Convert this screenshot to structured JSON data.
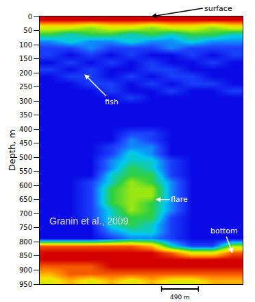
{
  "chart_data": {
    "type": "heatmap",
    "ylabel": "Depth, m",
    "x": [
      135,
      405,
      675,
      945,
      1215,
      1485,
      1755,
      2025,
      2295,
      2565
    ],
    "y": [
      12.5,
      37.5,
      62.5,
      87.5,
      112.5,
      137.5,
      162.5,
      187.5,
      212.5,
      237.5,
      262.5,
      287.5,
      312.5,
      337.5,
      362.5,
      387.5,
      412.5,
      437.5,
      462.5,
      487.5,
      512.5,
      537.5,
      562.5,
      587.5,
      612.5,
      637.5,
      662.5,
      687.5,
      712.5,
      737.5,
      762.5,
      787.5,
      812.5,
      837.5,
      862.5,
      887.5,
      912.5,
      937.5
    ],
    "cells": [
      [
        9,
        9,
        9,
        9,
        9,
        9,
        9,
        9,
        9,
        9
      ],
      [
        6,
        6,
        5,
        6,
        6,
        5,
        6,
        6,
        5,
        6
      ],
      [
        4,
        3,
        4,
        4,
        3,
        4,
        3,
        4,
        4,
        3
      ],
      [
        2,
        3,
        2,
        2,
        3,
        2,
        2,
        3,
        2,
        2
      ],
      [
        1,
        1,
        2,
        1,
        1,
        1,
        2,
        1,
        1,
        1
      ],
      [
        1,
        0,
        1,
        0,
        1,
        0,
        0,
        1,
        0,
        1
      ],
      [
        0,
        1,
        0,
        1,
        0,
        1,
        0,
        0,
        1,
        0
      ],
      [
        1,
        0,
        1,
        0,
        0,
        1,
        1,
        0,
        0,
        0
      ],
      [
        0,
        1,
        1,
        0,
        1,
        0,
        1,
        1,
        0,
        0
      ],
      [
        0,
        0,
        1,
        1,
        0,
        1,
        0,
        1,
        1,
        0
      ],
      [
        0,
        0,
        0,
        1,
        0,
        0,
        1,
        0,
        0,
        1
      ],
      [
        0,
        0,
        0,
        0,
        1,
        0,
        0,
        0,
        0,
        0
      ],
      [
        0,
        0,
        0,
        0,
        0,
        0,
        0,
        0,
        0,
        0
      ],
      [
        0,
        0,
        0,
        0,
        0,
        0,
        0,
        0,
        0,
        0
      ],
      [
        0,
        0,
        0,
        0,
        0,
        0,
        0,
        0,
        0,
        0
      ],
      [
        0,
        0,
        0,
        0,
        0,
        0,
        0,
        0,
        0,
        0
      ],
      [
        0,
        0,
        0,
        0,
        1,
        1,
        0,
        0,
        0,
        0
      ],
      [
        0,
        0,
        0,
        0,
        2,
        1,
        0,
        0,
        0,
        0
      ],
      [
        0,
        0,
        0,
        1,
        2,
        2,
        0,
        0,
        0,
        0
      ],
      [
        0,
        0,
        0,
        1,
        3,
        2,
        0,
        0,
        0,
        0
      ],
      [
        0,
        0,
        0,
        2,
        3,
        3,
        1,
        0,
        0,
        0
      ],
      [
        0,
        0,
        0,
        2,
        4,
        3,
        1,
        0,
        0,
        0
      ],
      [
        0,
        0,
        0,
        3,
        4,
        4,
        1,
        0,
        0,
        0
      ],
      [
        0,
        0,
        1,
        3,
        5,
        4,
        2,
        0,
        0,
        0
      ],
      [
        0,
        0,
        1,
        4,
        5,
        5,
        2,
        0,
        0,
        0
      ],
      [
        0,
        0,
        1,
        4,
        5,
        5,
        2,
        0,
        0,
        0
      ],
      [
        0,
        0,
        1,
        4,
        5,
        4,
        2,
        0,
        0,
        0
      ],
      [
        0,
        0,
        1,
        3,
        5,
        4,
        2,
        0,
        0,
        0
      ],
      [
        0,
        0,
        1,
        3,
        4,
        4,
        1,
        0,
        0,
        0
      ],
      [
        0,
        0,
        0,
        3,
        4,
        3,
        1,
        0,
        0,
        0
      ],
      [
        0,
        0,
        0,
        2,
        3,
        3,
        1,
        0,
        0,
        0
      ],
      [
        0,
        0,
        0,
        1,
        2,
        2,
        1,
        0,
        0,
        0
      ],
      [
        8,
        8,
        8,
        8,
        8,
        7,
        3,
        1,
        1,
        5
      ],
      [
        9,
        9,
        9,
        9,
        9,
        9,
        8,
        6,
        6,
        8
      ],
      [
        9,
        9,
        9,
        9,
        9,
        9,
        9,
        9,
        9,
        9
      ],
      [
        8,
        8,
        8,
        9,
        9,
        9,
        9,
        9,
        9,
        9
      ],
      [
        7,
        8,
        8,
        8,
        8,
        8,
        8,
        8,
        8,
        8
      ],
      [
        6,
        7,
        6,
        7,
        6,
        7,
        6,
        6,
        7,
        7
      ]
    ],
    "xlim": [
      0,
      2700
    ],
    "ylim": [
      950,
      0
    ],
    "yticks": [
      0,
      50,
      100,
      150,
      200,
      250,
      300,
      350,
      400,
      450,
      500,
      550,
      600,
      650,
      700,
      750,
      800,
      850,
      900,
      950
    ],
    "tick_labels": "y",
    "annotations": [
      "surface",
      "fish",
      "flare",
      "bottom",
      "Granin et al., 2009"
    ],
    "scale_bar": {
      "length": 490,
      "label": "490 m"
    }
  }
}
